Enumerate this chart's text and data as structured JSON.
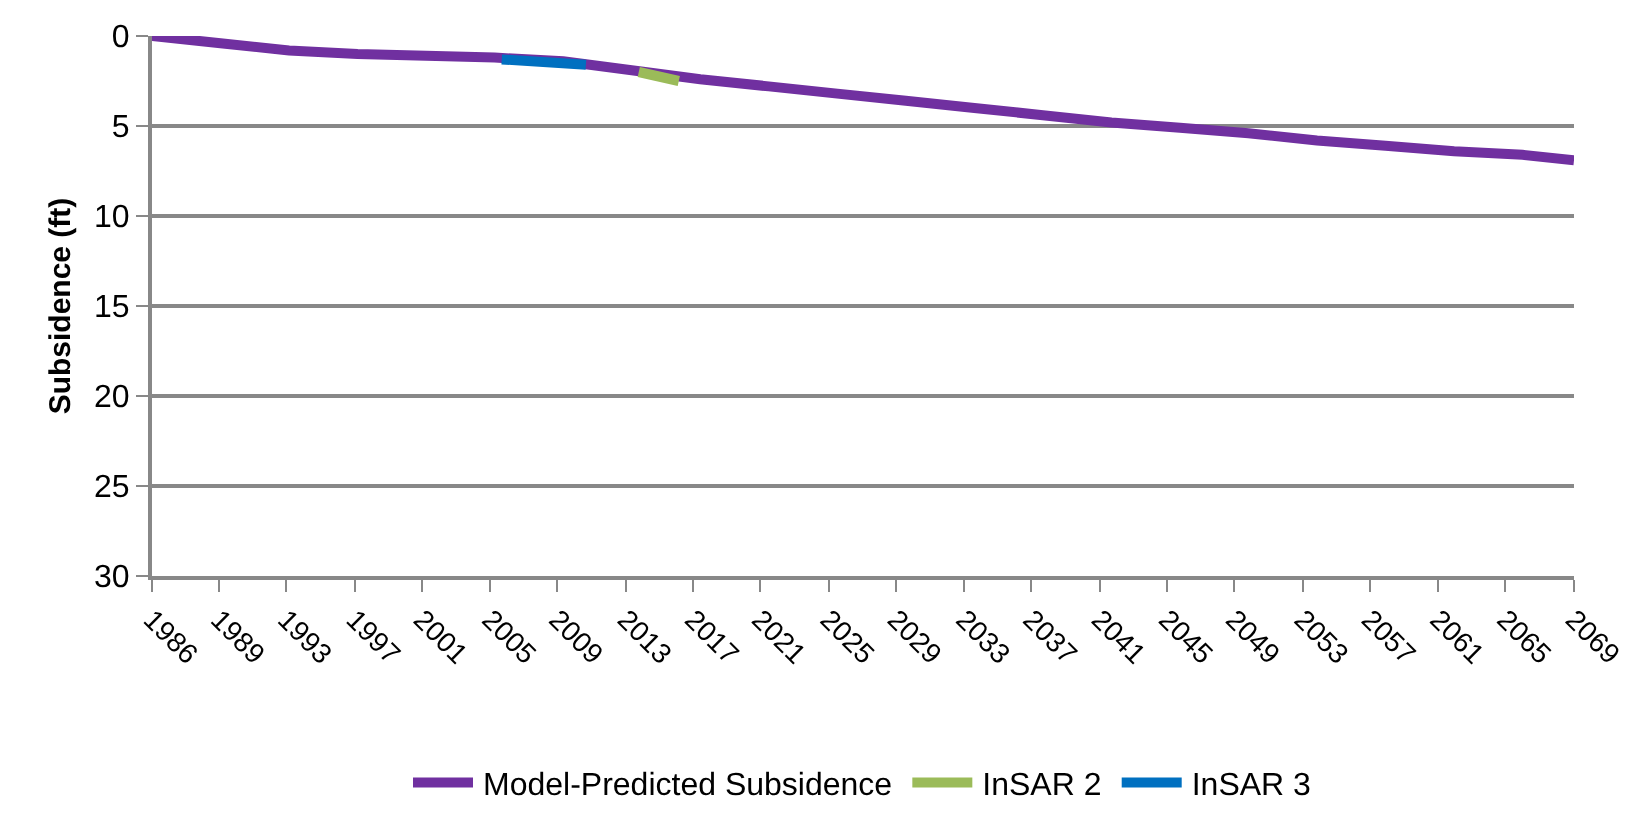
{
  "chart_data": {
    "type": "line",
    "ylabel": "Subsidence (ft)",
    "xlim": [
      "1986-01",
      "2069-01"
    ],
    "xticks": [
      {
        "value": "1986-01",
        "label": "1986"
      },
      {
        "value": "1989-12",
        "label": "1989"
      },
      {
        "value": "1993-11",
        "label": "1993"
      },
      {
        "value": "1997-11",
        "label": "1997"
      },
      {
        "value": "2001-10",
        "label": "2001"
      },
      {
        "value": "2005-10",
        "label": "2005"
      },
      {
        "value": "2009-09",
        "label": "2009"
      },
      {
        "value": "2013-09",
        "label": "2013"
      },
      {
        "value": "2017-08",
        "label": "2017"
      },
      {
        "value": "2021-07",
        "label": "2021"
      },
      {
        "value": "2025-07",
        "label": "2025"
      },
      {
        "value": "2029-06",
        "label": "2029"
      },
      {
        "value": "2033-06",
        "label": "2033"
      },
      {
        "value": "2037-05",
        "label": "2037"
      },
      {
        "value": "2041-05",
        "label": "2041"
      },
      {
        "value": "2045-04",
        "label": "2045"
      },
      {
        "value": "2049-03",
        "label": "2049"
      },
      {
        "value": "2053-03",
        "label": "2053"
      },
      {
        "value": "2057-02",
        "label": "2057"
      },
      {
        "value": "2061-02",
        "label": "2061"
      },
      {
        "value": "2065-01",
        "label": "2065"
      },
      {
        "value": "2069-01",
        "label": "2069"
      }
    ],
    "ylim": [
      30,
      0
    ],
    "yticks": [
      0,
      5,
      10,
      15,
      20,
      25,
      30
    ],
    "grid": "y",
    "legend": "bottom",
    "line_style": "solid",
    "marker": "none",
    "series": [
      {
        "name": "Model-Predicted Subsidence",
        "color": "#7030a0",
        "x": [
          "1986",
          "1990",
          "1994",
          "1998",
          "2002",
          "2006",
          "2010",
          "2014",
          "2018",
          "2022",
          "2026",
          "2030",
          "2034",
          "2038",
          "2042",
          "2046",
          "2050",
          "2054",
          "2058",
          "2062",
          "2066",
          "2069"
        ],
        "values": [
          0,
          0.4,
          0.8,
          1.0,
          1.1,
          1.2,
          1.4,
          1.9,
          2.4,
          2.8,
          3.2,
          3.6,
          4.0,
          4.4,
          4.8,
          5.1,
          5.4,
          5.8,
          6.1,
          6.4,
          6.6,
          6.9
        ]
      },
      {
        "name": "InSAR 2",
        "color": "#9bbb59",
        "x": [
          "2014-06",
          "2016-10"
        ],
        "values": [
          2.0,
          2.5
        ]
      },
      {
        "name": "InSAR 3",
        "color": "#0070c0",
        "x": [
          "2006-06",
          "2011-05"
        ],
        "values": [
          1.3,
          1.6
        ]
      }
    ]
  }
}
